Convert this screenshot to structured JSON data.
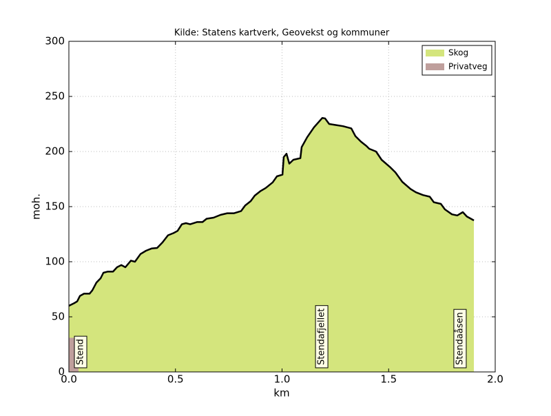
{
  "chart_data": {
    "type": "area",
    "title": "Kilde: Statens kartverk, Geovekst og kommuner",
    "xlabel": "km",
    "ylabel": "moh.",
    "xlim": [
      0,
      2.0
    ],
    "ylim": [
      0,
      300
    ],
    "xticks": [
      {
        "value": 0,
        "label": "0.0"
      },
      {
        "value": 0.5,
        "label": "0.5"
      },
      {
        "value": 1.0,
        "label": "1.0"
      },
      {
        "value": 1.5,
        "label": "1.5"
      },
      {
        "value": 2.0,
        "label": "2.0"
      }
    ],
    "yticks": [
      0,
      50,
      100,
      150,
      200,
      250,
      300
    ],
    "grid": true,
    "legend": "upper right",
    "line_color": "#000000",
    "x": [
      0,
      0.026,
      0.039,
      0.052,
      0.071,
      0.097,
      0.11,
      0.129,
      0.149,
      0.162,
      0.181,
      0.207,
      0.226,
      0.246,
      0.265,
      0.291,
      0.31,
      0.336,
      0.362,
      0.388,
      0.414,
      0.439,
      0.465,
      0.491,
      0.51,
      0.53,
      0.549,
      0.569,
      0.601,
      0.627,
      0.646,
      0.679,
      0.711,
      0.743,
      0.775,
      0.808,
      0.827,
      0.853,
      0.872,
      0.898,
      0.924,
      0.956,
      0.976,
      1.002,
      1.008,
      1.021,
      1.034,
      1.053,
      1.086,
      1.092,
      1.118,
      1.15,
      1.189,
      1.202,
      1.221,
      1.254,
      1.286,
      1.325,
      1.344,
      1.37,
      1.396,
      1.409,
      1.441,
      1.467,
      1.506,
      1.532,
      1.564,
      1.603,
      1.628,
      1.661,
      1.693,
      1.712,
      1.745,
      1.764,
      1.797,
      1.822,
      1.848,
      1.867,
      1.9
    ],
    "y": [
      60,
      62.5,
      64,
      69,
      71,
      71,
      74,
      81,
      85,
      90,
      91,
      91,
      95,
      97,
      95,
      101,
      100,
      107,
      110,
      112,
      112.5,
      117.5,
      124,
      126,
      128,
      134,
      135,
      134,
      136,
      136,
      139,
      140,
      142.5,
      144,
      144,
      146,
      151,
      155,
      160,
      164,
      167,
      172,
      177.5,
      179,
      195,
      198,
      189,
      192.5,
      194,
      204,
      213,
      222,
      230.5,
      230,
      225,
      224,
      223,
      221,
      214,
      209,
      205,
      202.5,
      200,
      192.5,
      186,
      181,
      172.5,
      166,
      163,
      160.5,
      159,
      154,
      152.5,
      147.5,
      143,
      142,
      145,
      141,
      137.5
    ],
    "surfaces": [
      {
        "name": "Skog",
        "color": "#d4e57d",
        "from": 0,
        "to": 1.9
      },
      {
        "name": "Privatveg",
        "color": "#bf9f9c",
        "from": 0,
        "to": 0.045,
        "height": 31
      }
    ],
    "annotations": [
      {
        "text": "Stend",
        "x": 0.055
      },
      {
        "text": "Stendafjellet",
        "x": 1.186
      },
      {
        "text": "Stendaåsen",
        "x": 1.835
      }
    ]
  }
}
